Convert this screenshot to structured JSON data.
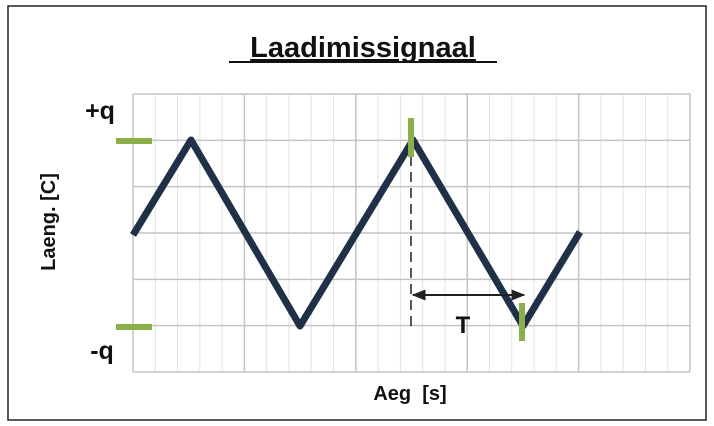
{
  "title": "Laadimissignaal",
  "labels": {
    "plus_q": "+q",
    "minus_q": "-q",
    "y_axis": "Laeng. [C]",
    "x_axis": "Aeg  [s]",
    "period": "T"
  }
}
